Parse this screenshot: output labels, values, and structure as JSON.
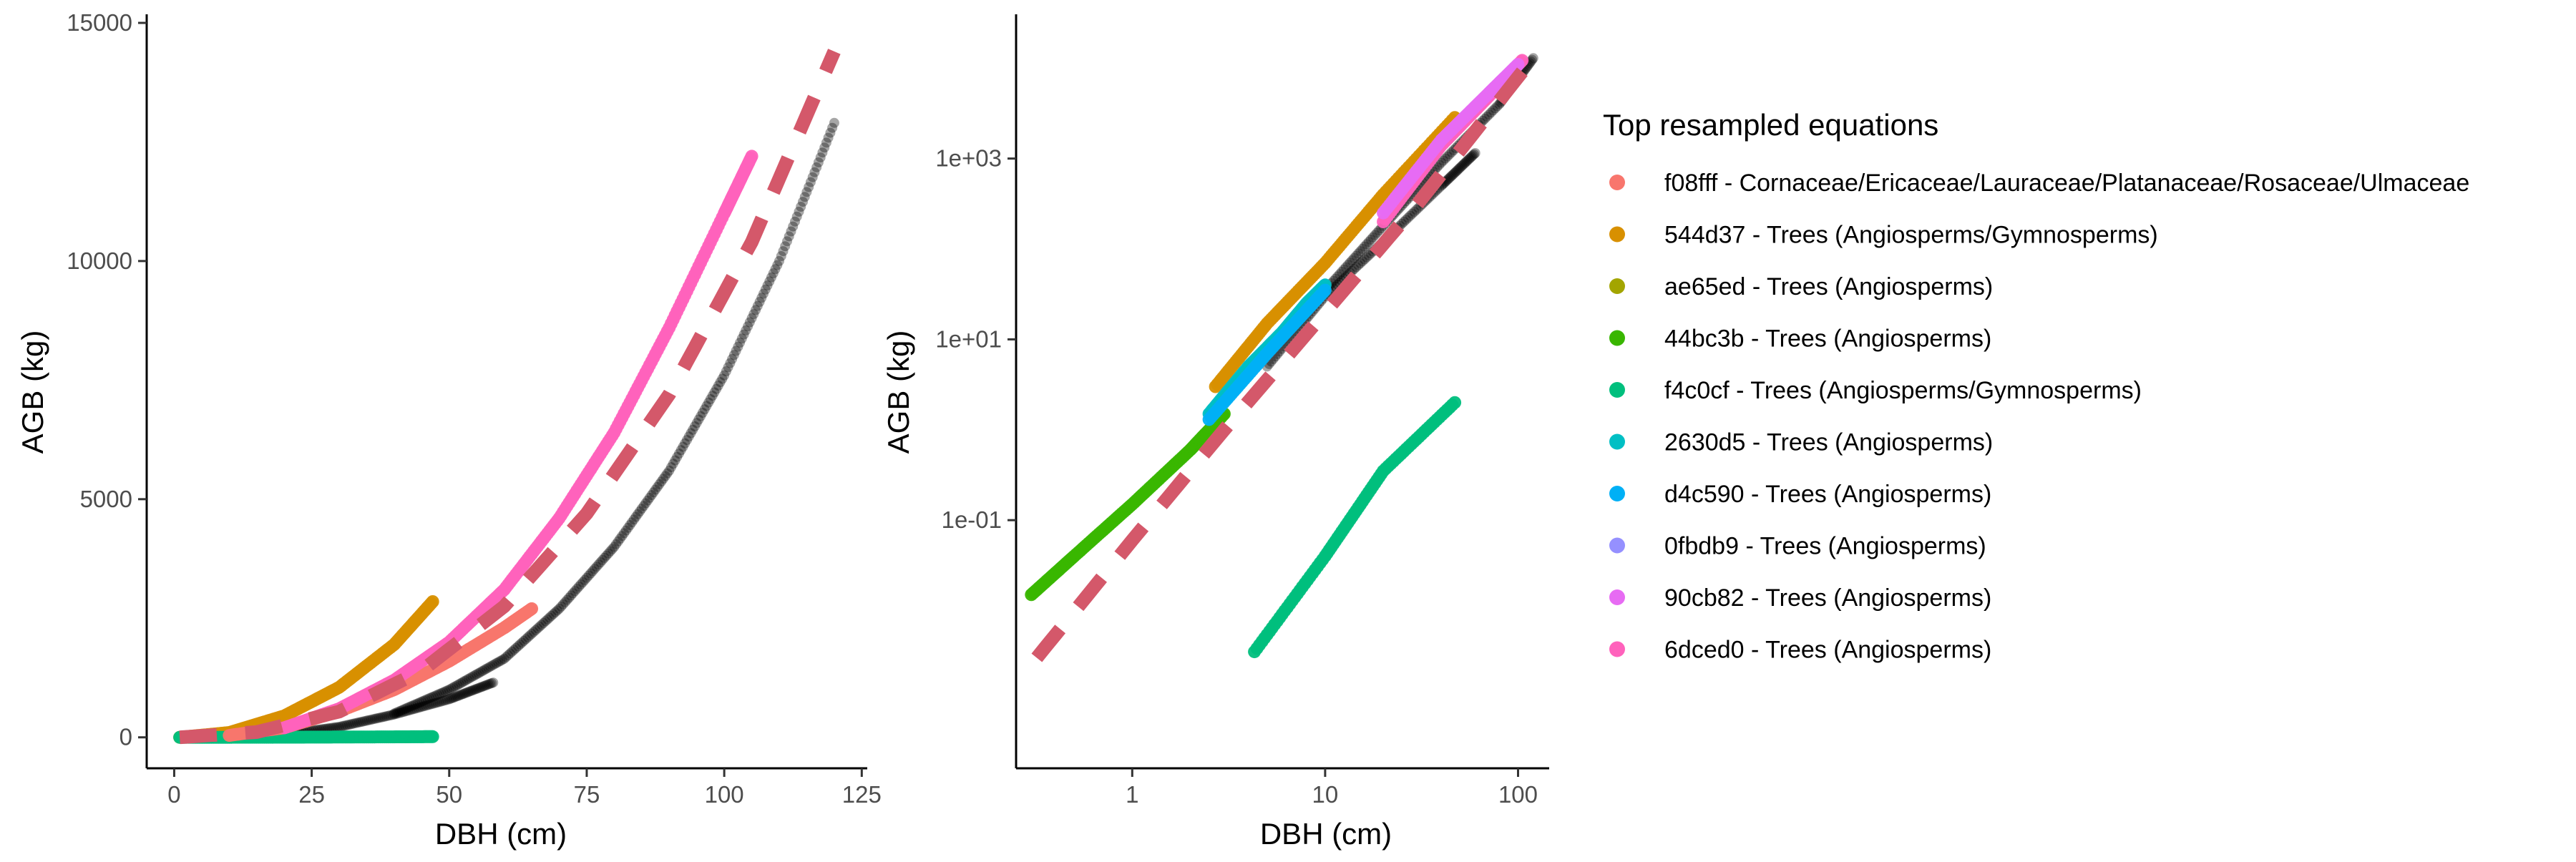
{
  "legend": {
    "title": "Top resampled equations",
    "items": [
      {
        "label": "f08fff - Cornaceae/Ericaceae/Lauraceae/Platanaceae/Rosaceae/Ulmaceae",
        "color": "#F8766D"
      },
      {
        "label": "544d37 - Trees (Angiosperms/Gymnosperms)",
        "color": "#D89000"
      },
      {
        "label": "ae65ed - Trees (Angiosperms)",
        "color": "#A3A500"
      },
      {
        "label": "44bc3b - Trees (Angiosperms)",
        "color": "#39B600"
      },
      {
        "label": "f4c0cf - Trees (Angiosperms/Gymnosperms)",
        "color": "#00BF7D"
      },
      {
        "label": "2630d5 - Trees (Angiosperms)",
        "color": "#00BFC4"
      },
      {
        "label": "d4c590 - Trees (Angiosperms)",
        "color": "#00B0F6"
      },
      {
        "label": "0fbdb9 - Trees (Angiosperms)",
        "color": "#9590FF"
      },
      {
        "label": "90cb82 - Trees (Angiosperms)",
        "color": "#E76BF3"
      },
      {
        "label": "6dced0 - Trees (Angiosperms)",
        "color": "#FF62BC"
      }
    ]
  },
  "chart_data": [
    {
      "type": "scatter",
      "xlabel": "DBH (cm)",
      "ylabel": "AGB (kg)",
      "xscale": "linear",
      "yscale": "linear",
      "xlim": [
        -5,
        126
      ],
      "ylim": [
        -650,
        15150
      ],
      "xticks": [
        0,
        25,
        50,
        75,
        100,
        125
      ],
      "xtick_labels": [
        "0",
        "25",
        "50",
        "75",
        "100",
        "125"
      ],
      "yticks": [
        0,
        5000,
        10000,
        15000
      ],
      "ytick_labels": [
        "0",
        "5000",
        "10000",
        "15000"
      ],
      "grid": false,
      "legend_position": "right",
      "observations_color": "#000000",
      "fit_line": {
        "color": "#D4586A",
        "style": "dashed",
        "x": [
          1,
          15,
          30,
          45,
          60,
          75,
          90,
          105,
          120
        ],
        "y": [
          0,
          110,
          540,
          1400,
          2750,
          4700,
          7200,
          10400,
          14400
        ]
      },
      "series": [
        {
          "name": "observations",
          "color": "#000000",
          "x": [
            20,
            30,
            40,
            50,
            58
          ],
          "y": [
            60,
            220,
            480,
            800,
            1150
          ]
        },
        {
          "name": "observations",
          "color": "#000000",
          "x": [
            40,
            50,
            60,
            70,
            80,
            90,
            100,
            110,
            120
          ],
          "y": [
            500,
            1000,
            1650,
            2700,
            4000,
            5600,
            7600,
            10000,
            12900
          ]
        },
        {
          "name": "544d37 - Trees (Angiosperms/Gymnosperms)",
          "color": "#D89000",
          "x": [
            1,
            10,
            20,
            30,
            40,
            47
          ],
          "y": [
            0,
            100,
            450,
            1050,
            1950,
            2850
          ]
        },
        {
          "name": "f4c0cf - Trees (Angiosperms/Gymnosperms)",
          "color": "#00BF7D",
          "x": [
            1,
            10,
            20,
            30,
            40,
            47
          ],
          "y": [
            0,
            1,
            3,
            6,
            10,
            14
          ]
        },
        {
          "name": "f08fff - Cornaceae/Ericaceae/Lauraceae/Platanaceae/Rosaceae/Ulmaceae",
          "color": "#F8766D",
          "x": [
            10,
            20,
            30,
            40,
            50,
            60,
            65
          ],
          "y": [
            40,
            200,
            550,
            1000,
            1600,
            2300,
            2700
          ]
        },
        {
          "name": "6dced0 - Trees (Angiosperms)",
          "color": "#FF62BC",
          "x": [
            20,
            30,
            40,
            50,
            60,
            70,
            80,
            90,
            100,
            105
          ],
          "y": [
            200,
            600,
            1200,
            2000,
            3100,
            4600,
            6400,
            8600,
            11000,
            12200
          ]
        }
      ]
    },
    {
      "type": "scatter",
      "xlabel": "DBH (cm)",
      "ylabel": "AGB (kg)",
      "xscale": "log",
      "yscale": "log",
      "xlim": [
        0.25,
        145
      ],
      "ylim": [
        0.00018,
        38000
      ],
      "xticks": [
        1,
        10,
        100
      ],
      "xtick_labels": [
        "1",
        "10",
        "100"
      ],
      "yticks": [
        0.1,
        10,
        1000
      ],
      "ytick_labels": [
        "1e-01",
        "1e+01",
        "1e+03"
      ],
      "grid": false,
      "fit_line": {
        "color": "#D4586A",
        "style": "dashed",
        "x": [
          0.32,
          1,
          3,
          10,
          30,
          110
        ],
        "y": [
          0.003,
          0.06,
          1,
          20,
          310,
          10300
        ]
      },
      "series": [
        {
          "name": "observations",
          "color": "#000000",
          "x": [
            5,
            10,
            20,
            40,
            60
          ],
          "y": [
            5,
            30,
            120,
            500,
            1150
          ]
        },
        {
          "name": "observations",
          "color": "#000000",
          "x": [
            10,
            20,
            40,
            80,
            120
          ],
          "y": [
            35,
            180,
            900,
            4000,
            12900
          ]
        },
        {
          "name": "544d37 - Trees (Angiosperms/Gymnosperms)",
          "color": "#D89000",
          "x": [
            2.7,
            5,
            10,
            20,
            47
          ],
          "y": [
            3,
            15,
            70,
            400,
            2850
          ]
        },
        {
          "name": "44bc3b - Trees (Angiosperms)",
          "color": "#39B600",
          "x": [
            0.3,
            0.5,
            1,
            2,
            3
          ],
          "y": [
            0.015,
            0.04,
            0.15,
            0.6,
            1.5
          ]
        },
        {
          "name": "2630d5 - Trees (Angiosperms)",
          "color": "#00BFC4",
          "x": [
            2.5,
            4,
            6,
            8,
            10
          ],
          "y": [
            1.5,
            5,
            12,
            25,
            40
          ]
        },
        {
          "name": "d4c590 - Trees (Angiosperms)",
          "color": "#00B0F6",
          "x": [
            2.5,
            5,
            10
          ],
          "y": [
            1.3,
            7,
            35
          ]
        },
        {
          "name": "f4c0cf - Trees (Angiosperms/Gymnosperms)",
          "color": "#00BF7D",
          "x": [
            4.3,
            10,
            20,
            47
          ],
          "y": [
            0.0035,
            0.04,
            0.35,
            2
          ]
        },
        {
          "name": "6dced0 - Trees (Angiosperms)",
          "color": "#FF62BC",
          "x": [
            20,
            40,
            70,
            105
          ],
          "y": [
            200,
            1400,
            4800,
            12200
          ]
        },
        {
          "name": "90cb82 - Trees (Angiosperms)",
          "color": "#E76BF3",
          "x": [
            20,
            40,
            70,
            100
          ],
          "y": [
            250,
            1600,
            5200,
            11000
          ]
        }
      ]
    }
  ]
}
